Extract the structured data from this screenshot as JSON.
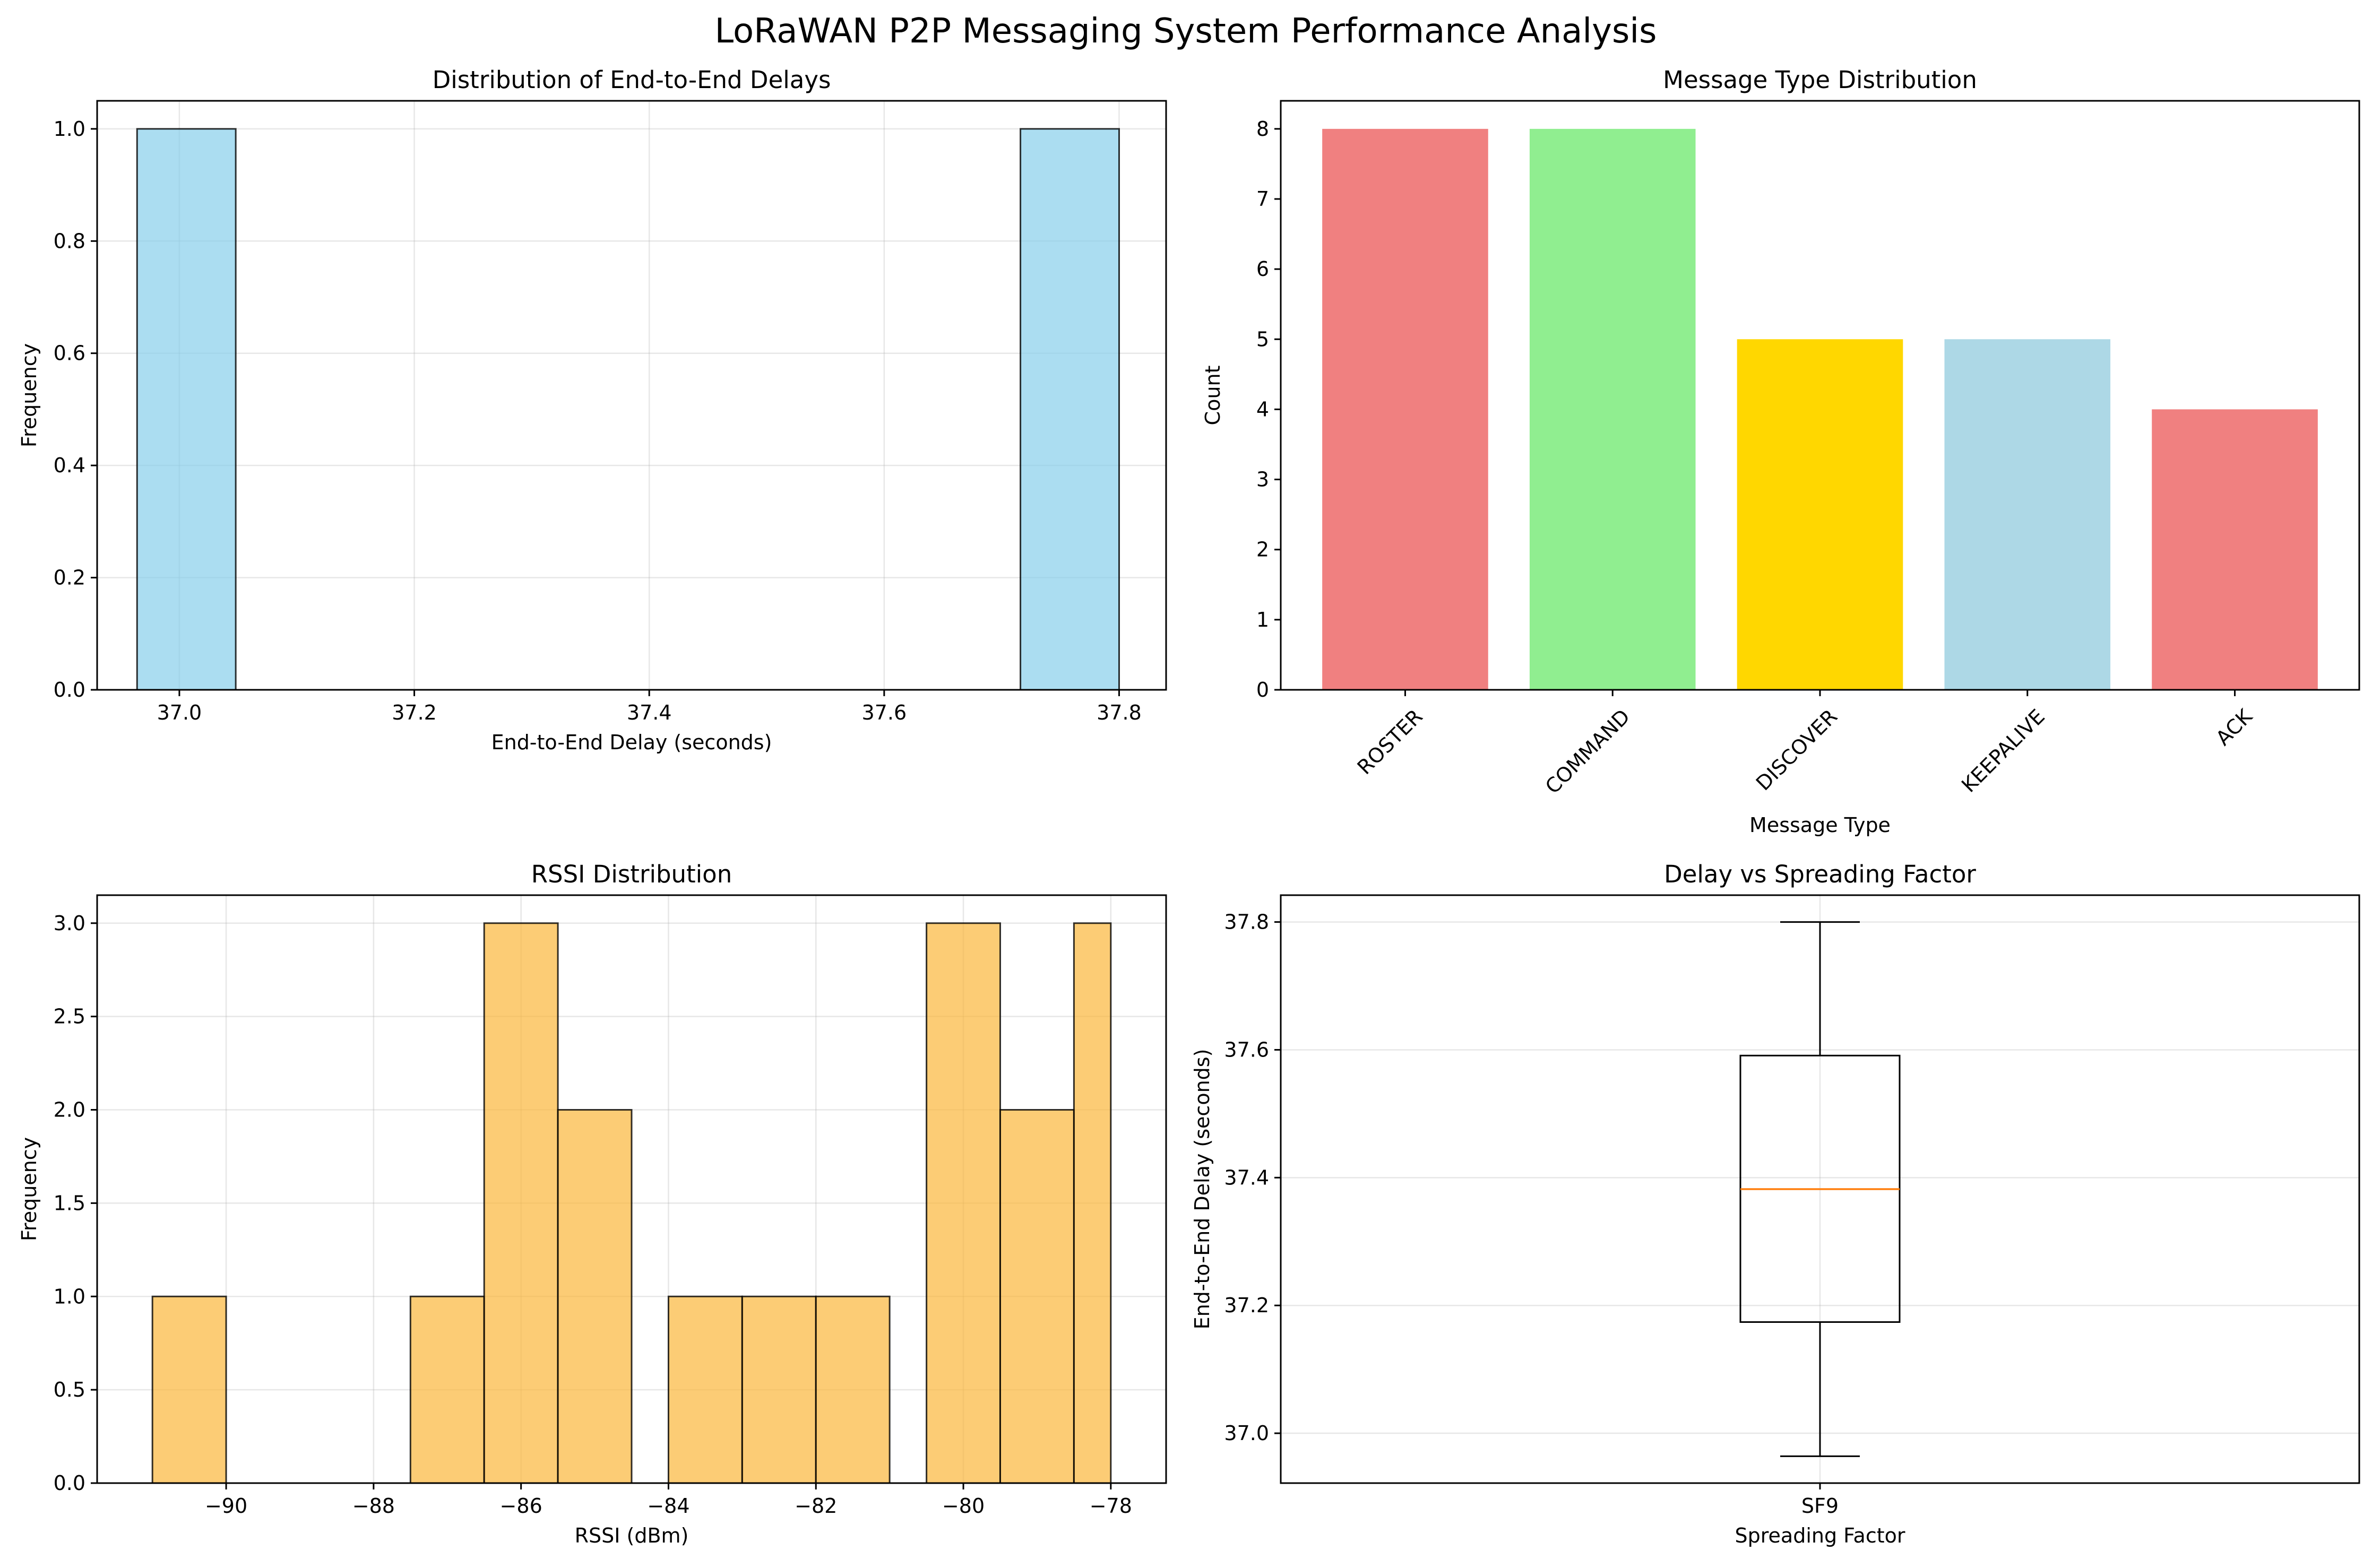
{
  "figure": {
    "title": "LoRaWAN P2P Messaging System Performance Analysis"
  },
  "chart_data": [
    {
      "id": "delay_hist",
      "type": "bar",
      "title": "Distribution of End-to-End Delays",
      "xlabel": "End-to-End Delay (seconds)",
      "ylabel": "Frequency",
      "xlim": [
        36.93,
        37.84
      ],
      "ylim": [
        0,
        1.05
      ],
      "xticks": [
        37.0,
        37.2,
        37.4,
        37.6,
        37.8
      ],
      "xtick_labels": [
        "37.0",
        "37.2",
        "37.4",
        "37.6",
        "37.8"
      ],
      "yticks": [
        0.0,
        0.2,
        0.4,
        0.6,
        0.8,
        1.0
      ],
      "ytick_labels": [
        "0.0",
        "0.2",
        "0.4",
        "0.6",
        "0.8",
        "1.0"
      ],
      "bins": [
        {
          "x0": 36.964,
          "x1": 37.048,
          "value": 1
        },
        {
          "x0": 37.716,
          "x1": 37.8,
          "value": 1
        }
      ],
      "color": "#87CEEB",
      "grid": true
    },
    {
      "id": "msg_type_bar",
      "type": "bar",
      "title": "Message Type Distribution",
      "xlabel": "Message Type",
      "ylabel": "Count",
      "categories": [
        "ROSTER",
        "COMMAND",
        "DISCOVER",
        "KEEPALIVE",
        "ACK"
      ],
      "values": [
        8,
        8,
        5,
        5,
        4
      ],
      "colors": [
        "#F08080",
        "#90EE90",
        "#FFD700",
        "#ADD8E6",
        "#F08080"
      ],
      "ylim": [
        0,
        8.4
      ],
      "yticks": [
        0,
        1,
        2,
        3,
        4,
        5,
        6,
        7,
        8
      ],
      "ytick_labels": [
        "0",
        "1",
        "2",
        "3",
        "4",
        "5",
        "6",
        "7",
        "8"
      ],
      "grid": false
    },
    {
      "id": "rssi_hist",
      "type": "bar",
      "title": "RSSI Distribution",
      "xlabel": "RSSI (dBm)",
      "ylabel": "Frequency",
      "xlim": [
        -91.75,
        -77.25
      ],
      "ylim": [
        0,
        3.15
      ],
      "xticks": [
        -90,
        -88,
        -86,
        -84,
        -82,
        -80,
        -78
      ],
      "xtick_labels": [
        "−90",
        "−88",
        "−86",
        "−84",
        "−82",
        "−80",
        "−78"
      ],
      "yticks": [
        0.0,
        0.5,
        1.0,
        1.5,
        2.0,
        2.5,
        3.0
      ],
      "ytick_labels": [
        "0.0",
        "0.5",
        "1.0",
        "1.5",
        "2.0",
        "2.5",
        "3.0"
      ],
      "bins": [
        {
          "x0": -91.0,
          "x1": -90.0,
          "value": 1
        },
        {
          "x0": -87.5,
          "x1": -86.5,
          "value": 1
        },
        {
          "x0": -86.5,
          "x1": -85.5,
          "value": 3
        },
        {
          "x0": -85.5,
          "x1": -84.5,
          "value": 2
        },
        {
          "x0": -84.0,
          "x1": -83.0,
          "value": 1
        },
        {
          "x0": -83.0,
          "x1": -82.0,
          "value": 1
        },
        {
          "x0": -82.0,
          "x1": -81.0,
          "value": 1
        },
        {
          "x0": -80.5,
          "x1": -79.5,
          "value": 3
        },
        {
          "x0": -79.5,
          "x1": -78.5,
          "value": 2
        },
        {
          "x0": -78.5,
          "x1": -78.0,
          "value": 3
        }
      ],
      "color": "#FBB73B",
      "grid": true
    },
    {
      "id": "delay_box",
      "type": "box",
      "title": "Delay vs Spreading Factor",
      "xlabel": "Spreading Factor",
      "ylabel": "End-to-End Delay (seconds)",
      "categories": [
        "SF9"
      ],
      "box": {
        "min": 36.964,
        "q1": 37.174,
        "median": 37.382,
        "q3": 37.591,
        "max": 37.8
      },
      "ylim": [
        36.922,
        37.842
      ],
      "yticks": [
        37.0,
        37.2,
        37.4,
        37.6,
        37.8
      ],
      "ytick_labels": [
        "37.0",
        "37.2",
        "37.4",
        "37.6",
        "37.8"
      ],
      "median_color": "#FF7F0E",
      "grid": true
    }
  ]
}
